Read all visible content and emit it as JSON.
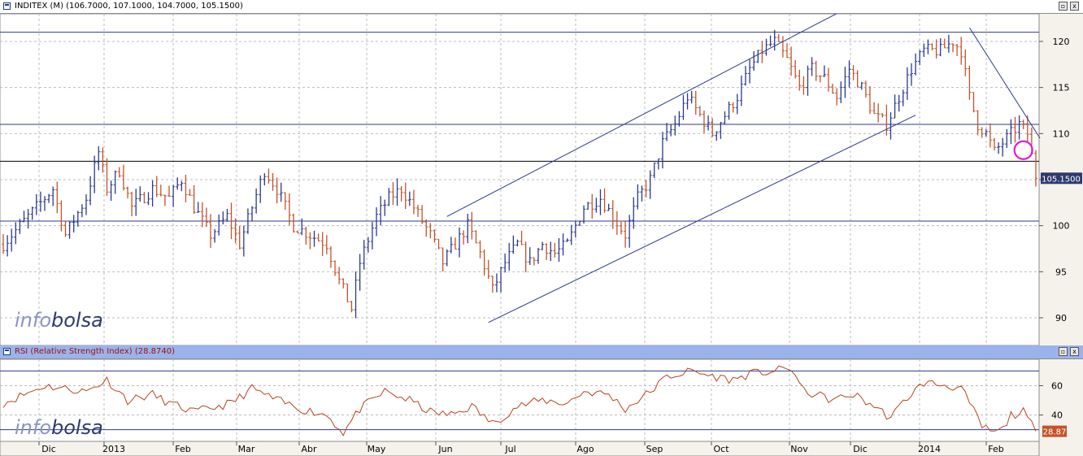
{
  "price_panel": {
    "title": "INDITEX (M) (106.7000, 107.1000, 104.7000, 105.1500)",
    "last_value": "105.1500",
    "watermark": {
      "light": "info",
      "dark": "bolsa"
    }
  },
  "rsi_panel": {
    "title": "RSI (Relative Strength Index) (28.8740)",
    "last_value": "28.87",
    "watermark": {
      "light": "info",
      "dark": "bolsa"
    }
  },
  "colors": {
    "up": "#2c3a8c",
    "down": "#c2532a",
    "rsi_line": "#b8441e",
    "grid": "#bcbcbc",
    "badge": "#2e3a6e",
    "rsi_badge": "#c4532a",
    "marker": "#e01ad8"
  },
  "icons": [
    "restore-window-icon",
    "close-window-icon"
  ],
  "window_buttons": {
    "restore": "▫",
    "close": "x"
  },
  "x_axis_labels": [
    "Dic",
    "2013",
    "Feb",
    "Mar",
    "Abr",
    "May",
    "Jun",
    "Jul",
    "Ago",
    "Sep",
    "Oct",
    "Nov",
    "Dic",
    "2014",
    "Feb"
  ],
  "chart_data": [
    {
      "type": "bar",
      "subtype": "ohlc",
      "title": "INDITEX (M) (106.7000, 107.1000, 104.7000, 105.1500)",
      "y_ticks": [
        90,
        95,
        100,
        105,
        110,
        115,
        120
      ],
      "ylim": [
        87,
        123
      ],
      "grid": true,
      "x_labels": [
        "Dic",
        "2013",
        "Feb",
        "Mar",
        "Abr",
        "May",
        "Jun",
        "Jul",
        "Ago",
        "Sep",
        "Oct",
        "Nov",
        "Dic",
        "2014",
        "Feb"
      ],
      "close_path": [
        [
          0,
          98
        ],
        [
          8,
          102
        ],
        [
          12,
          104
        ],
        [
          15,
          99
        ],
        [
          20,
          103
        ],
        [
          23,
          108
        ],
        [
          25,
          104
        ],
        [
          28,
          106
        ],
        [
          31,
          102
        ],
        [
          36,
          104
        ],
        [
          40,
          103
        ],
        [
          43,
          105
        ],
        [
          46,
          102
        ],
        [
          50,
          99
        ],
        [
          54,
          101
        ],
        [
          57,
          98
        ],
        [
          60,
          102
        ],
        [
          63,
          106
        ],
        [
          66,
          104
        ],
        [
          70,
          100
        ],
        [
          74,
          99
        ],
        [
          78,
          98
        ],
        [
          81,
          94
        ],
        [
          84,
          91
        ],
        [
          86,
          96
        ],
        [
          90,
          101
        ],
        [
          93,
          103
        ],
        [
          96,
          104
        ],
        [
          99,
          102
        ],
        [
          103,
          99
        ],
        [
          106,
          96
        ],
        [
          109,
          98
        ],
        [
          112,
          100
        ],
        [
          115,
          97
        ],
        [
          118,
          93
        ],
        [
          121,
          96
        ],
        [
          124,
          98
        ],
        [
          127,
          96
        ],
        [
          130,
          98
        ],
        [
          133,
          97
        ],
        [
          136,
          98
        ],
        [
          140,
          102
        ],
        [
          144,
          103
        ],
        [
          147,
          101
        ],
        [
          150,
          99
        ],
        [
          153,
          103
        ],
        [
          156,
          105
        ],
        [
          159,
          109
        ],
        [
          162,
          111
        ],
        [
          165,
          114
        ],
        [
          168,
          112
        ],
        [
          171,
          110
        ],
        [
          174,
          112
        ],
        [
          177,
          114
        ],
        [
          180,
          117
        ],
        [
          183,
          119
        ],
        [
          186,
          120
        ],
        [
          189,
          118
        ],
        [
          192,
          115
        ],
        [
          195,
          117
        ],
        [
          198,
          116
        ],
        [
          201,
          114
        ],
        [
          204,
          117
        ],
        [
          207,
          115
        ],
        [
          210,
          112
        ],
        [
          213,
          111
        ],
        [
          216,
          114
        ],
        [
          219,
          117
        ],
        [
          222,
          119
        ],
        [
          226,
          119
        ],
        [
          229,
          120
        ],
        [
          231,
          119
        ],
        [
          233,
          114
        ],
        [
          235,
          111
        ],
        [
          237,
          110
        ],
        [
          239,
          108
        ],
        [
          241,
          109
        ],
        [
          243,
          110
        ],
        [
          245,
          111
        ],
        [
          247,
          110
        ],
        [
          249,
          105.15
        ]
      ],
      "last_value": 105.15,
      "horizontal_lines": [
        121,
        111,
        107,
        100.5
      ],
      "trendlines": [
        {
          "from": [
            107,
            101
          ],
          "to": [
            203,
            123.5
          ]
        },
        {
          "from": [
            117,
            89.5
          ],
          "to": [
            220,
            112
          ]
        },
        {
          "from": [
            233,
            121.5
          ],
          "to": [
            250,
            109.5
          ]
        }
      ],
      "marker": {
        "x": 246,
        "y": 108.2
      }
    },
    {
      "type": "line",
      "title": "RSI (Relative Strength Index) (28.8740)",
      "y_ticks": [
        40,
        60
      ],
      "ylim": [
        22,
        78
      ],
      "grid": true,
      "overbought": 70,
      "oversold": 30,
      "path": [
        [
          0,
          48
        ],
        [
          10,
          60
        ],
        [
          20,
          56
        ],
        [
          25,
          64
        ],
        [
          30,
          50
        ],
        [
          36,
          54
        ],
        [
          40,
          48
        ],
        [
          46,
          42
        ],
        [
          55,
          48
        ],
        [
          60,
          58
        ],
        [
          66,
          50
        ],
        [
          72,
          44
        ],
        [
          78,
          40
        ],
        [
          82,
          28
        ],
        [
          86,
          44
        ],
        [
          92,
          56
        ],
        [
          98,
          50
        ],
        [
          103,
          42
        ],
        [
          108,
          40
        ],
        [
          113,
          46
        ],
        [
          118,
          34
        ],
        [
          124,
          46
        ],
        [
          130,
          50
        ],
        [
          136,
          48
        ],
        [
          140,
          56
        ],
        [
          146,
          54
        ],
        [
          150,
          44
        ],
        [
          156,
          56
        ],
        [
          160,
          66
        ],
        [
          166,
          70
        ],
        [
          170,
          67
        ],
        [
          176,
          64
        ],
        [
          180,
          68
        ],
        [
          186,
          70
        ],
        [
          190,
          72
        ],
        [
          193,
          56
        ],
        [
          196,
          54
        ],
        [
          200,
          50
        ],
        [
          205,
          54
        ],
        [
          210,
          46
        ],
        [
          214,
          38
        ],
        [
          218,
          52
        ],
        [
          222,
          62
        ],
        [
          228,
          60
        ],
        [
          231,
          58
        ],
        [
          233,
          48
        ],
        [
          236,
          32
        ],
        [
          239,
          28
        ],
        [
          241,
          30
        ],
        [
          243,
          40
        ],
        [
          246,
          42
        ],
        [
          249,
          28.87
        ]
      ],
      "last_value": 28.87
    }
  ]
}
